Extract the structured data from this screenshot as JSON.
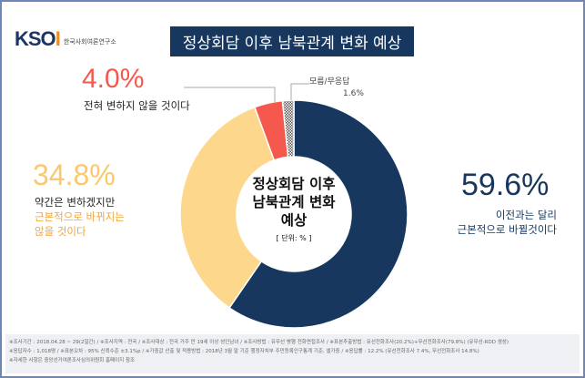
{
  "logo": {
    "mark": "KSOI",
    "sub": "한국사회여론연구소"
  },
  "title": "정상회담 이후 남북관계 변화 예상",
  "chart_data": {
    "type": "pie",
    "title": "정상회담 이후 남북관계 변화 예상",
    "unit": "[ 단위: % ]",
    "center_label": [
      "정상회담 이후",
      "남북관계 변화",
      "예상"
    ],
    "slices": [
      {
        "label": "이전과는 달리 근본적으로 바뀔것이다",
        "value": 59.6,
        "value_text": "59.6%",
        "color": "#17375e",
        "lines": [
          "이전과는 달리",
          "근본적으로 바뀔것이다"
        ]
      },
      {
        "label": "약간은 변하겠지만 근본적으로 바뀌지는 않을 것이다",
        "value": 34.8,
        "value_text": "34.8%",
        "color": "#fdd88c",
        "lines": [
          "약간은 변하겠지만",
          "근본적으로 바뀌지는",
          "않을 것이다"
        ]
      },
      {
        "label": "전혀 변하지 않을 것이다",
        "value": 4.0,
        "value_text": "4.0%",
        "color": "#f5584d",
        "lines": [
          "전혀 변하지 않을 것이다"
        ]
      },
      {
        "label": "모름/무응답",
        "value": 1.6,
        "value_text": "1.6%",
        "color": "#888888",
        "lines": [
          "모름/무응답"
        ]
      }
    ]
  },
  "footer": [
    "※조사기간 : 2018.04.28 ~ 29(2일간)  / ※조사지역 : 전국 / ※조사대상 : 전국 거주 만 19세 이상 성인남녀 / ※조사방법 : 유무선 병행 전화면접조사 / ※표본추출방법 : 유선전화조사(20.2%)+무선전화조사(79.8%) (유무선-RDD 생성)",
    "※응답자수 : 1,018명 / ※표본오차 : 95% 신뢰수준 ±3.1%p / ※가중값 산출 및 적용방법 : 2018년 3월 말 기준 행정자치부 주민등록인구통계 기준, 셀가중 / ※응답률 : 12.2% (유선전화조사 7.4%, 무선전화조사 14.8%)",
    "※자세한 사항은 중앙선거여론조사심의위원회 홈페이지 참조"
  ]
}
